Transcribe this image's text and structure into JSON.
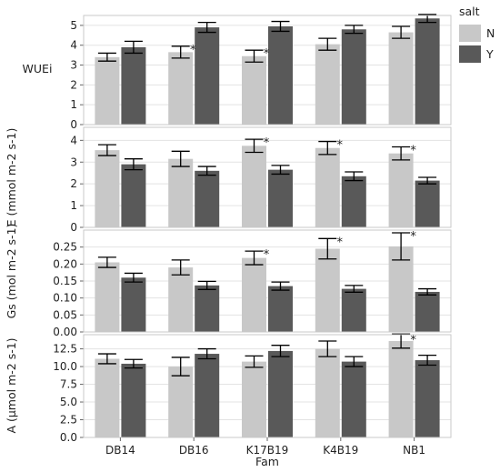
{
  "colors": {
    "N": "#c8c8c8",
    "Y": "#595959",
    "frame": "#c9c9c9",
    "grid": "#e3e3e3",
    "err": "#000000"
  },
  "legend": {
    "title": "salt",
    "items": [
      "N",
      "Y"
    ]
  },
  "chart_data": {
    "type": "bar",
    "xlabel": "Fam",
    "categories": [
      "DB14",
      "DB16",
      "K17B19",
      "K4B19",
      "NB1"
    ],
    "groups": [
      "N",
      "Y"
    ],
    "panels": [
      {
        "ylabel": "WUEi",
        "ylim": [
          0,
          5.5
        ],
        "ticks": [
          "0",
          "1",
          "2",
          "3",
          "4",
          "5"
        ],
        "tick_values": [
          0,
          1,
          2,
          3,
          4,
          5
        ],
        "series": [
          {
            "name": "N",
            "values": [
              3.4,
              3.65,
              3.45,
              4.05,
              4.65
            ],
            "err": [
              0.2,
              0.3,
              0.3,
              0.3,
              0.3
            ]
          },
          {
            "name": "Y",
            "values": [
              3.9,
              4.9,
              4.95,
              4.8,
              5.35
            ],
            "err": [
              0.3,
              0.25,
              0.25,
              0.2,
              0.2
            ]
          }
        ],
        "stars": [
          "",
          "*",
          "*",
          "",
          ""
        ]
      },
      {
        "ylabel": "E (mmol m-2 s-1)",
        "ylim": [
          0,
          4.6
        ],
        "ticks": [
          "0",
          "1",
          "2",
          "3",
          "4"
        ],
        "tick_values": [
          0,
          1,
          2,
          3,
          4
        ],
        "series": [
          {
            "name": "N",
            "values": [
              3.55,
              3.15,
              3.75,
              3.65,
              3.4
            ],
            "err": [
              0.25,
              0.35,
              0.3,
              0.3,
              0.3
            ]
          },
          {
            "name": "Y",
            "values": [
              2.9,
              2.6,
              2.65,
              2.35,
              2.15
            ],
            "err": [
              0.25,
              0.2,
              0.2,
              0.2,
              0.15
            ]
          }
        ],
        "stars": [
          "",
          "",
          "*",
          "*",
          "*"
        ]
      },
      {
        "ylabel": "Gs (mol m-2 s-1)",
        "ylim": [
          0,
          0.3
        ],
        "ticks": [
          "0.00",
          "0.05",
          "0.10",
          "0.15",
          "0.20",
          "0.25"
        ],
        "tick_values": [
          0,
          0.05,
          0.1,
          0.15,
          0.2,
          0.25
        ],
        "series": [
          {
            "name": "N",
            "values": [
              0.205,
              0.19,
              0.218,
              0.245,
              0.252
            ],
            "err": [
              0.015,
              0.022,
              0.02,
              0.03,
              0.04
            ]
          },
          {
            "name": "Y",
            "values": [
              0.16,
              0.137,
              0.135,
              0.127,
              0.118
            ],
            "err": [
              0.013,
              0.012,
              0.012,
              0.01,
              0.009
            ]
          }
        ],
        "stars": [
          "",
          "",
          "*",
          "*",
          "*"
        ]
      },
      {
        "ylabel": "A (µmol m-2 s-1)",
        "ylim": [
          0,
          14.5
        ],
        "ticks": [
          "0.0",
          "2.5",
          "5.0",
          "7.5",
          "10.0",
          "12.5"
        ],
        "tick_values": [
          0,
          2.5,
          5,
          7.5,
          10,
          12.5
        ],
        "series": [
          {
            "name": "N",
            "values": [
              11.1,
              10.0,
              10.7,
              12.5,
              13.6
            ],
            "err": [
              0.7,
              1.3,
              0.8,
              1.1,
              1.0
            ]
          },
          {
            "name": "Y",
            "values": [
              10.4,
              11.8,
              12.2,
              10.7,
              10.9
            ],
            "err": [
              0.6,
              0.7,
              0.8,
              0.7,
              0.7
            ]
          }
        ],
        "stars": [
          "",
          "",
          "",
          "",
          "*"
        ]
      }
    ]
  }
}
